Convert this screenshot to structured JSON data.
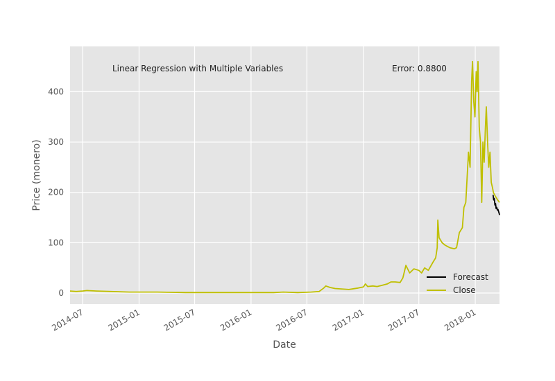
{
  "chart_data": {
    "type": "line",
    "title": "",
    "xlabel": "Date",
    "ylabel": "Price (monero)",
    "xlim": [
      "2014-05-21",
      "2018-03-21"
    ],
    "ylim": [
      -22,
      490
    ],
    "grid": true,
    "legend_position": "lower-right",
    "x_ticks": [
      "2014-07-01",
      "2015-01-01",
      "2015-07-01",
      "2016-01-01",
      "2016-07-01",
      "2017-01-01",
      "2017-07-01",
      "2018-01-01"
    ],
    "x_tick_labels": [
      "2014-07",
      "2015-01",
      "2015-07",
      "2016-01",
      "2016-07",
      "2017-01",
      "2017-07",
      "2018-01"
    ],
    "y_ticks": [
      0,
      100,
      200,
      300,
      400
    ],
    "y_tick_labels": [
      "0",
      "100",
      "200",
      "300",
      "400"
    ],
    "annotations": [
      {
        "text": "Linear Regression with Multiple Variables"
      },
      {
        "text": "Error: 0.8800"
      }
    ],
    "series": [
      {
        "name": "Forecast",
        "color": "#000000",
        "x": [
          "2018-02-28",
          "2018-03-02",
          "2018-03-04",
          "2018-03-06",
          "2018-03-08",
          "2018-03-10",
          "2018-03-12",
          "2018-03-14",
          "2018-03-16",
          "2018-03-18",
          "2018-03-20",
          "2018-03-21"
        ],
        "values": [
          195,
          185,
          188,
          175,
          178,
          168,
          170,
          165,
          166,
          162,
          158,
          155
        ]
      },
      {
        "name": "Close",
        "color": "#bfbf00",
        "x": [
          "2014-05-21",
          "2014-06-10",
          "2014-07-01",
          "2014-07-15",
          "2014-08-15",
          "2014-10-01",
          "2014-12-01",
          "2015-03-01",
          "2015-06-01",
          "2015-09-01",
          "2015-12-01",
          "2016-02-01",
          "2016-03-15",
          "2016-04-15",
          "2016-06-01",
          "2016-07-15",
          "2016-08-10",
          "2016-08-25",
          "2016-09-01",
          "2016-09-15",
          "2016-10-01",
          "2016-11-15",
          "2016-12-15",
          "2017-01-01",
          "2017-01-08",
          "2017-01-15",
          "2017-02-01",
          "2017-02-15",
          "2017-03-01",
          "2017-03-20",
          "2017-04-01",
          "2017-04-15",
          "2017-05-01",
          "2017-05-10",
          "2017-05-20",
          "2017-06-01",
          "2017-06-15",
          "2017-07-01",
          "2017-07-10",
          "2017-07-20",
          "2017-08-01",
          "2017-08-15",
          "2017-08-25",
          "2017-08-30",
          "2017-09-01",
          "2017-09-05",
          "2017-09-15",
          "2017-09-25",
          "2017-10-10",
          "2017-10-25",
          "2017-11-01",
          "2017-11-10",
          "2017-11-20",
          "2017-11-25",
          "2017-12-01",
          "2017-12-10",
          "2017-12-15",
          "2017-12-20",
          "2017-12-23",
          "2017-12-27",
          "2017-12-31",
          "2018-01-04",
          "2018-01-07",
          "2018-01-10",
          "2018-01-14",
          "2018-01-18",
          "2018-01-22",
          "2018-01-26",
          "2018-01-30",
          "2018-02-03",
          "2018-02-06",
          "2018-02-10",
          "2018-02-14",
          "2018-02-18",
          "2018-02-22",
          "2018-02-26",
          "2018-03-01",
          "2018-03-05",
          "2018-03-10",
          "2018-03-15",
          "2018-03-21"
        ],
        "values": [
          4,
          3,
          4,
          5,
          4,
          3,
          2,
          2,
          1,
          1,
          1,
          1,
          1,
          2,
          1,
          2,
          3,
          10,
          14,
          11,
          9,
          7,
          10,
          12,
          18,
          13,
          14,
          13,
          15,
          18,
          22,
          22,
          21,
          30,
          55,
          40,
          48,
          45,
          40,
          50,
          45,
          60,
          70,
          90,
          145,
          110,
          100,
          95,
          90,
          88,
          90,
          120,
          130,
          170,
          180,
          280,
          250,
          420,
          460,
          380,
          350,
          440,
          400,
          460,
          330,
          300,
          180,
          300,
          260,
          330,
          370,
          300,
          250,
          280,
          220,
          210,
          200,
          195,
          190,
          185,
          180
        ]
      }
    ]
  }
}
